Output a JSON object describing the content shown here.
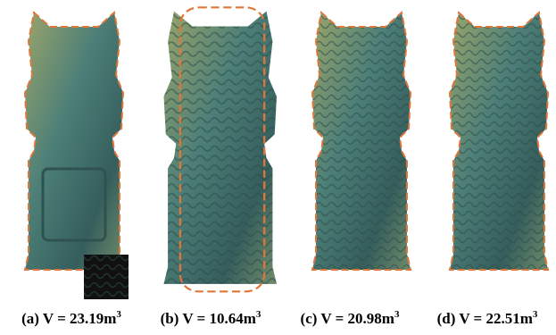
{
  "figure": {
    "panels": [
      {
        "caption": "(a) V = 23.19m",
        "sup": "3"
      },
      {
        "caption": "(b) V = 10.64m",
        "sup": "3"
      },
      {
        "caption": "(c) V = 20.98m",
        "sup": "3"
      },
      {
        "caption": "(d) V = 22.51m",
        "sup": "3"
      }
    ]
  }
}
